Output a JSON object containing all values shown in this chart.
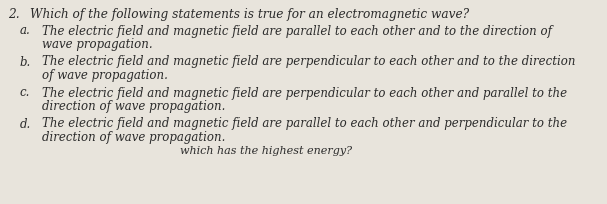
{
  "question_number": "2.",
  "question_text": "Which of the following statements is true for an electromagnetic wave?",
  "options": [
    {
      "label": "a.",
      "line1": "The electric field and magnetic field are parallel to each other and to the direction of",
      "line2": "wave propagation."
    },
    {
      "label": "b.",
      "line1": "The electric field and magnetic field are perpendicular to each other and to the direction",
      "line2": "of wave propagation."
    },
    {
      "label": "c.",
      "line1": "The electric field and magnetic field are perpendicular to each other and parallel to the",
      "line2": "direction of wave propagation."
    },
    {
      "label": "d.",
      "line1": "The electric field and magnetic field are parallel to each other and perpendicular to the",
      "line2": "direction of wave propagation."
    }
  ],
  "footer_text": "which has the highest energy?",
  "bg_color": "#e8e4dc",
  "text_color": "#2b2b2b",
  "font_size": 8.5,
  "question_font_size": 8.7,
  "figsize": [
    6.07,
    2.04
  ],
  "dpi": 100
}
